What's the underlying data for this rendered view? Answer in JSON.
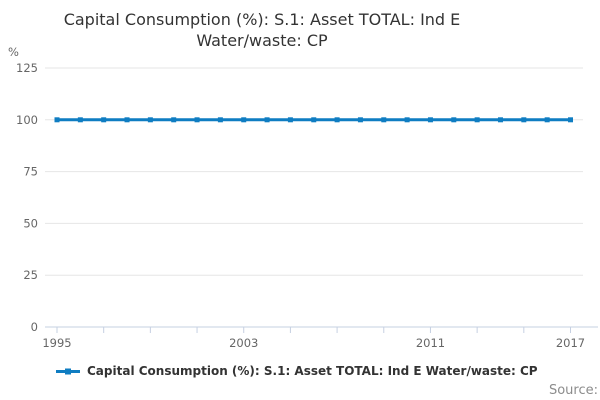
{
  "title": {
    "line1": "Capital Consumption (%): S.1: Asset TOTAL: Ind E",
    "line2": "Water/waste: CP"
  },
  "y_axis": {
    "unit_label": "%",
    "tick_labels": [
      "0",
      "25",
      "50",
      "75",
      "100",
      "125"
    ]
  },
  "x_axis": {
    "shown_labels": [
      "1995",
      "2003",
      "2011",
      "2017"
    ]
  },
  "legend": {
    "label": "Capital Consumption (%): S.1: Asset TOTAL: Ind E Water/waste: CP"
  },
  "source_label": "Source:",
  "colors": {
    "series": "#0f7dc2",
    "gridline": "#e6e6e6",
    "axis": "#c6d0e2",
    "axis_label": "#666666",
    "title": "#333333",
    "source": "#8c8c8c"
  },
  "chart_data": {
    "type": "line",
    "title": "Capital Consumption (%): S.1: Asset TOTAL: Ind E Water/waste: CP",
    "ylabel": "%",
    "xlabel": "",
    "ylim": [
      0,
      125
    ],
    "yticks": [
      0,
      25,
      50,
      75,
      100,
      125
    ],
    "x": [
      1995,
      1996,
      1997,
      1998,
      1999,
      2000,
      2001,
      2002,
      2003,
      2004,
      2005,
      2006,
      2007,
      2008,
      2009,
      2010,
      2011,
      2012,
      2013,
      2014,
      2015,
      2016,
      2017
    ],
    "series": [
      {
        "name": "Capital Consumption (%): S.1: Asset TOTAL: Ind E Water/waste: CP",
        "values": [
          100,
          100,
          100,
          100,
          100,
          100,
          100,
          100,
          100,
          100,
          100,
          100,
          100,
          100,
          100,
          100,
          100,
          100,
          100,
          100,
          100,
          100,
          100
        ]
      }
    ],
    "xtick_interval": 2,
    "xticks_shown": [
      1995,
      2003,
      2011,
      2017
    ],
    "grid": "horizontal-only",
    "legend_position": "bottom",
    "marker": "square"
  }
}
